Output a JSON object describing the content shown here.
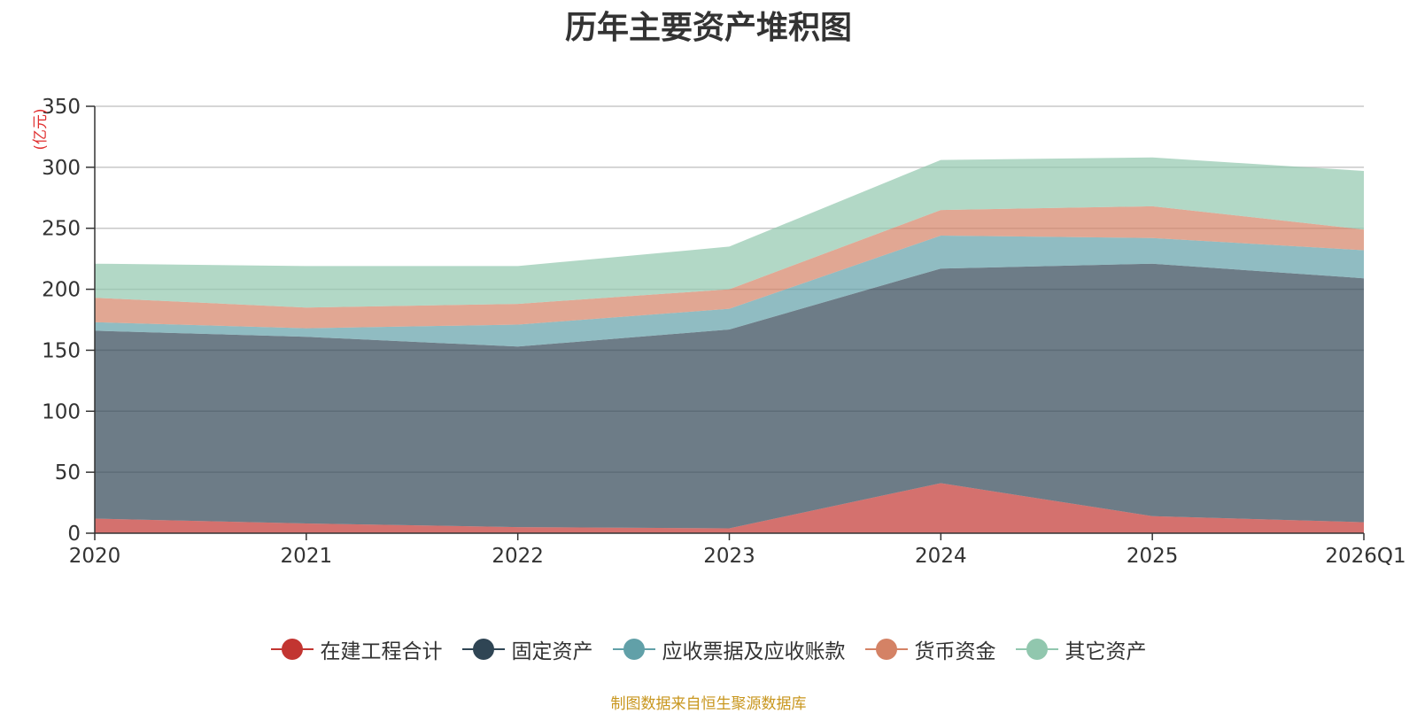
{
  "chart_data": {
    "type": "area",
    "stacked": true,
    "title": "历年主要资产堆积图",
    "ylabel": "(亿元)",
    "xlabel": "",
    "categories": [
      "2020",
      "2021",
      "2022",
      "2023",
      "2024",
      "2025",
      "2026Q1"
    ],
    "ylim": [
      0,
      350
    ],
    "yticks": [
      0,
      50,
      100,
      150,
      200,
      250,
      300,
      350
    ],
    "grid": true,
    "legend_position": "bottom",
    "series": [
      {
        "name": "在建工程合计",
        "color": "#c23531",
        "values": [
          12,
          8,
          5,
          4,
          41,
          14,
          9
        ]
      },
      {
        "name": "固定资产",
        "color": "#2f4554",
        "values": [
          154,
          153,
          148,
          163,
          176,
          207,
          200
        ]
      },
      {
        "name": "应收票据及应收账款",
        "color": "#61a0a8",
        "values": [
          7,
          7,
          18,
          17,
          27,
          21,
          23
        ]
      },
      {
        "name": "货币资金",
        "color": "#d48265",
        "values": [
          20,
          17,
          17,
          16,
          21,
          26,
          17
        ]
      },
      {
        "name": "其它资产",
        "color": "#91c7ae",
        "values": [
          28,
          34,
          31,
          35,
          41,
          40,
          48
        ]
      }
    ]
  },
  "source": {
    "text": "制图数据来自恒生聚源数据库",
    "color": "#c8961e"
  },
  "unit_color": "#e03030"
}
